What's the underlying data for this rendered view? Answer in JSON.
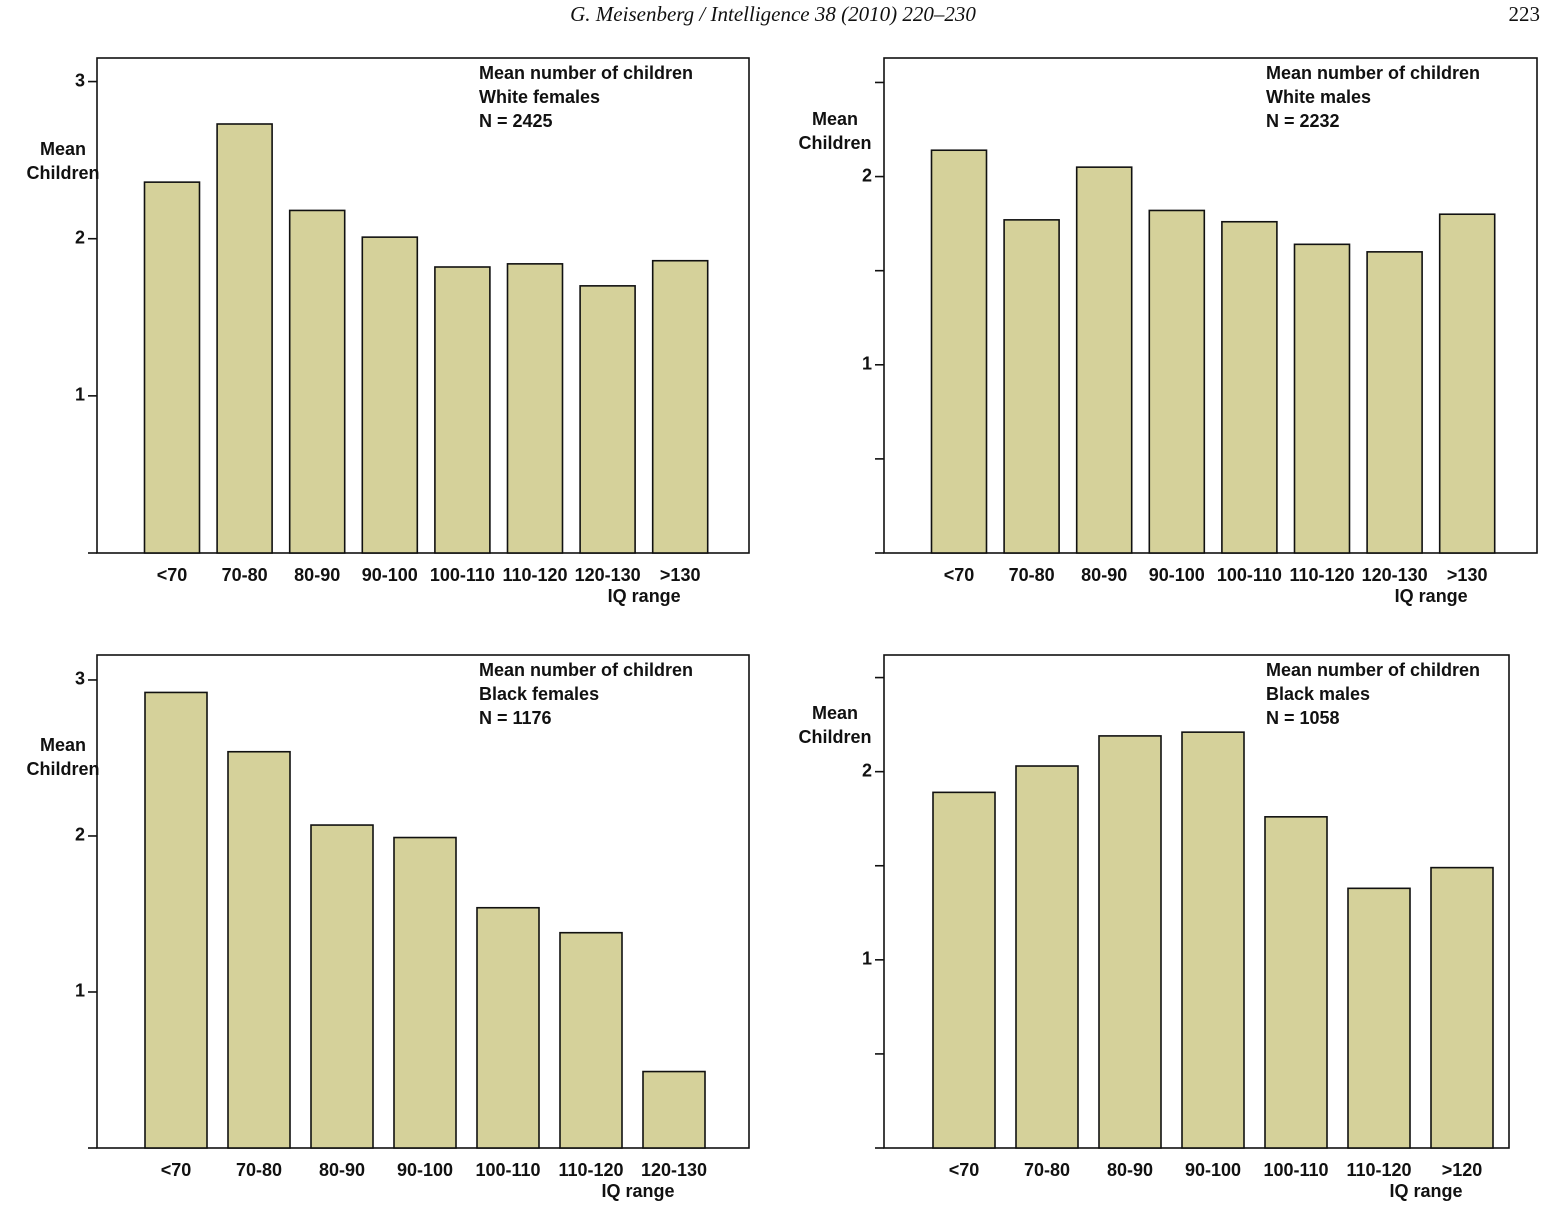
{
  "header": {
    "running_title": "G. Meisenberg / Intelligence 38 (2010) 220–230",
    "page_number": "223"
  },
  "chart_data": [
    {
      "type": "bar",
      "title": "Mean number of children",
      "subtitle": "White females",
      "annotation": "N = 2425",
      "ylabel": [
        "Mean",
        "Children"
      ],
      "xlabel": "IQ range",
      "color": "#d5d19a",
      "categories": [
        "<70",
        "70-80",
        "80-90",
        "90-100",
        "100-110",
        "110-120",
        "120-130",
        ">130"
      ],
      "values": [
        2.36,
        2.73,
        2.18,
        2.01,
        1.82,
        1.84,
        1.7,
        1.86
      ],
      "ylim": [
        0,
        3.15
      ],
      "yticks": [
        1,
        2,
        3
      ]
    },
    {
      "type": "bar",
      "title": "Mean number of children",
      "subtitle": "White males",
      "annotation": "N = 2232",
      "ylabel": [
        "Mean",
        "Children"
      ],
      "xlabel": "IQ range",
      "color": "#d5d19a",
      "categories": [
        "<70",
        "70-80",
        "80-90",
        "90-100",
        "100-110",
        "110-120",
        "120-130",
        ">130"
      ],
      "values": [
        2.14,
        1.77,
        2.05,
        1.82,
        1.76,
        1.64,
        1.6,
        1.8
      ],
      "ylim": [
        0,
        2.63
      ],
      "yticks": [
        1,
        2
      ],
      "minor_yticks": [
        0.5,
        1.5,
        2.5
      ]
    },
    {
      "type": "bar",
      "title": "Mean number of children",
      "subtitle": "Black females",
      "annotation": "N = 1176",
      "ylabel": [
        "Mean",
        "Children"
      ],
      "xlabel": "IQ range",
      "color": "#d5d19a",
      "categories": [
        "<70",
        "70-80",
        "80-90",
        "90-100",
        "100-110",
        "110-120",
        "120-130"
      ],
      "values": [
        2.92,
        2.54,
        2.07,
        1.99,
        1.54,
        1.38,
        0.49
      ],
      "ylim": [
        0,
        3.16
      ],
      "yticks": [
        1,
        2,
        3
      ]
    },
    {
      "type": "bar",
      "title": "Mean number of children",
      "subtitle": "Black males",
      "annotation": "N = 1058",
      "ylabel": [
        "Mean",
        "Children"
      ],
      "xlabel": "IQ range",
      "color": "#d5d19a",
      "categories": [
        "<70",
        "70-80",
        "80-90",
        "90-100",
        "100-110",
        "110-120",
        ">120"
      ],
      "values": [
        1.89,
        2.03,
        2.19,
        2.21,
        1.76,
        1.38,
        1.49
      ],
      "ylim": [
        0,
        2.62
      ],
      "yticks": [
        1,
        2
      ],
      "minor_yticks": [
        0.5,
        1.5,
        2.5
      ]
    }
  ]
}
